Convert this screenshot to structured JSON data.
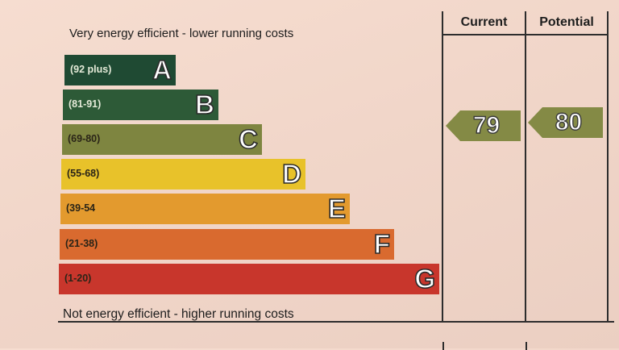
{
  "rating_chart": {
    "top_label": "Very energy efficient - lower running costs",
    "bottom_label": "Not energy efficient - higher running costs",
    "bands": [
      {
        "letter": "A",
        "range": "(92 plus)",
        "color": "#1f4a33"
      },
      {
        "letter": "B",
        "range": "(81-91)",
        "color": "#2d5a37"
      },
      {
        "letter": "C",
        "range": "(69-80)",
        "color": "#7e8540"
      },
      {
        "letter": "D",
        "range": "(55-68)",
        "color": "#e8c22a"
      },
      {
        "letter": "E",
        "range": "(39-54",
        "color": "#e39a2e"
      },
      {
        "letter": "F",
        "range": "(21-38)",
        "color": "#d96a2f"
      },
      {
        "letter": "G",
        "range": "(1-20)",
        "color": "#c8362c"
      }
    ]
  },
  "columns": {
    "current_label": "Current",
    "potential_label": "Potential",
    "current_value": "79",
    "potential_value": "80",
    "arrow_color": "#848a45"
  }
}
